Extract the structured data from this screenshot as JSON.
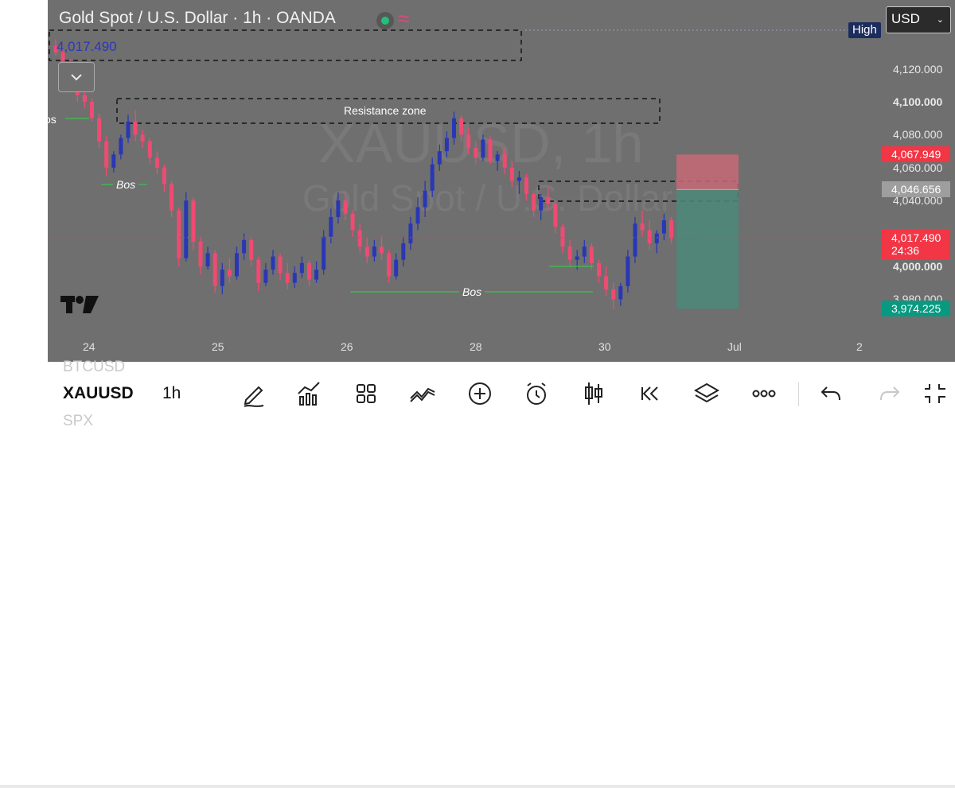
{
  "header": {
    "title": "Gold Spot / U.S. Dollar · 1h · OANDA",
    "ohlc_price": "4,017.490"
  },
  "watermark": {
    "line1": "XAUUSD, 1h",
    "line2": "Gold Spot / U.S. Dollar"
  },
  "currency_select": {
    "value": "USD"
  },
  "high_badge": "High",
  "annotations": {
    "resistance_zone": "Resistance zone",
    "bos_left": "os",
    "bos_1": "Bos",
    "bos_2": "Bos"
  },
  "price_axis": {
    "labels": [
      {
        "text": "4,120.000",
        "price": 4120
      },
      {
        "text": "4,100.000",
        "price": 4100
      },
      {
        "text": "4,080.000",
        "price": 4080
      },
      {
        "text": "4,060.000",
        "price": 4060
      },
      {
        "text": "4,040.000",
        "price": 4040
      },
      {
        "text": "4,000.000",
        "price": 4000
      },
      {
        "text": "3,980.000",
        "price": 3980
      }
    ],
    "tags": {
      "stop": {
        "text": "4,067.949",
        "price": 4067.949,
        "color": "#f23645"
      },
      "entry": {
        "text": "4,046.656",
        "price": 4046.656,
        "color": "#9e9e9e"
      },
      "last": {
        "text": "4,017.490",
        "countdown": "24:36",
        "price": 4017.49,
        "color": "#f23645"
      },
      "target": {
        "text": "3,974.225",
        "price": 3974.225,
        "color": "#089981"
      }
    }
  },
  "time_axis": {
    "labels": [
      {
        "text": "24",
        "t": 0
      },
      {
        "text": "25",
        "t": 24
      },
      {
        "text": "26",
        "t": 48
      },
      {
        "text": "28",
        "t": 72
      },
      {
        "text": "30",
        "t": 96
      },
      {
        "text": "Jul",
        "t": 120
      },
      {
        "text": "2",
        "t": 144
      }
    ]
  },
  "colors": {
    "up": "#2a37b5",
    "down": "#f04a73",
    "plot_bg": "#6f6f6f",
    "bos_line": "#3cc24a"
  },
  "chart_data": {
    "type": "candlestick",
    "symbol": "XAUUSD",
    "interval": "1h",
    "candles": [
      [
        4134,
        4138,
        4128,
        4130
      ],
      [
        4130,
        4133,
        4120,
        4122
      ],
      [
        4122,
        4126,
        4110,
        4113
      ],
      [
        4113,
        4115,
        4100,
        4104
      ],
      [
        4104,
        4108,
        4096,
        4100
      ],
      [
        4100,
        4102,
        4088,
        4090
      ],
      [
        4090,
        4093,
        4072,
        4076
      ],
      [
        4076,
        4079,
        4055,
        4060
      ],
      [
        4060,
        4070,
        4057,
        4068
      ],
      [
        4068,
        4080,
        4065,
        4078
      ],
      [
        4078,
        4092,
        4075,
        4088
      ],
      [
        4088,
        4095,
        4076,
        4080
      ],
      [
        4080,
        4083,
        4072,
        4076
      ],
      [
        4076,
        4078,
        4062,
        4066
      ],
      [
        4066,
        4070,
        4056,
        4060
      ],
      [
        4060,
        4062,
        4045,
        4050
      ],
      [
        4050,
        4052,
        4030,
        4034
      ],
      [
        4034,
        4036,
        4000,
        4005
      ],
      [
        4005,
        4045,
        4003,
        4040
      ],
      [
        4040,
        4042,
        4010,
        4015
      ],
      [
        4015,
        4018,
        3995,
        4000
      ],
      [
        4000,
        4012,
        3998,
        4008
      ],
      [
        4008,
        4010,
        3984,
        3988
      ],
      [
        3988,
        4002,
        3983,
        3998
      ],
      [
        3998,
        4005,
        3990,
        3994
      ],
      [
        3994,
        4012,
        3992,
        4008
      ],
      [
        4008,
        4020,
        4004,
        4016
      ],
      [
        4016,
        4018,
        4000,
        4004
      ],
      [
        4004,
        4006,
        3985,
        3990
      ],
      [
        3990,
        4002,
        3988,
        3998
      ],
      [
        3998,
        4010,
        3995,
        4006
      ],
      [
        4006,
        4008,
        3992,
        3996
      ],
      [
        3996,
        4002,
        3986,
        3990
      ],
      [
        3990,
        4000,
        3987,
        3996
      ],
      [
        3996,
        4006,
        3993,
        4002
      ],
      [
        4002,
        4004,
        3988,
        3992
      ],
      [
        3992,
        4003,
        3990,
        3998
      ],
      [
        3998,
        4022,
        3995,
        4018
      ],
      [
        4018,
        4035,
        4014,
        4030
      ],
      [
        4030,
        4045,
        4026,
        4040
      ],
      [
        4040,
        4046,
        4028,
        4032
      ],
      [
        4032,
        4034,
        4018,
        4022
      ],
      [
        4022,
        4026,
        4008,
        4012
      ],
      [
        4012,
        4018,
        4002,
        4006
      ],
      [
        4006,
        4016,
        4003,
        4012
      ],
      [
        4012,
        4018,
        4004,
        4008
      ],
      [
        4008,
        4010,
        3990,
        3994
      ],
      [
        3994,
        4008,
        3992,
        4004
      ],
      [
        4004,
        4018,
        4000,
        4014
      ],
      [
        4014,
        4030,
        4010,
        4026
      ],
      [
        4026,
        4042,
        4022,
        4036
      ],
      [
        4036,
        4052,
        4030,
        4046
      ],
      [
        4046,
        4066,
        4042,
        4062
      ],
      [
        4062,
        4074,
        4058,
        4070
      ],
      [
        4070,
        4082,
        4066,
        4078
      ],
      [
        4078,
        4094,
        4074,
        4090
      ],
      [
        4090,
        4092,
        4076,
        4080
      ],
      [
        4080,
        4084,
        4068,
        4072
      ],
      [
        4072,
        4076,
        4062,
        4066
      ],
      [
        4066,
        4080,
        4064,
        4077
      ],
      [
        4077,
        4079,
        4062,
        4064
      ],
      [
        4064,
        4070,
        4058,
        4068
      ],
      [
        4068,
        4072,
        4056,
        4060
      ],
      [
        4060,
        4064,
        4048,
        4052
      ],
      [
        4052,
        4058,
        4044,
        4054
      ],
      [
        4054,
        4056,
        4040,
        4044
      ],
      [
        4044,
        4046,
        4030,
        4034
      ],
      [
        4034,
        4044,
        4028,
        4042
      ],
      [
        4042,
        4048,
        4034,
        4038
      ],
      [
        4038,
        4040,
        4020,
        4024
      ],
      [
        4024,
        4026,
        4008,
        4012
      ],
      [
        4012,
        4016,
        4000,
        4004
      ],
      [
        4004,
        4010,
        3998,
        4006
      ],
      [
        4006,
        4016,
        4002,
        4012
      ],
      [
        4012,
        4014,
        3998,
        4002
      ],
      [
        4002,
        4004,
        3990,
        3994
      ],
      [
        3994,
        4000,
        3982,
        3986
      ],
      [
        3986,
        3990,
        3974,
        3980
      ],
      [
        3980,
        3990,
        3976,
        3988
      ],
      [
        3988,
        4010,
        3984,
        4006
      ],
      [
        4006,
        4030,
        4002,
        4026
      ],
      [
        4026,
        4034,
        4018,
        4022
      ],
      [
        4022,
        4028,
        4010,
        4014
      ],
      [
        4014,
        4022,
        4008,
        4020
      ],
      [
        4020,
        4032,
        4016,
        4028
      ],
      [
        4028,
        4030,
        4014,
        4017
      ]
    ],
    "long_short_position": {
      "entry": 4046.656,
      "stop": 4067.949,
      "target": 3974.225
    }
  },
  "toolbar": {
    "ticker_above": "BTCUSD",
    "ticker": "XAUUSD",
    "interval": "1h",
    "ticker_below": "SPX"
  }
}
